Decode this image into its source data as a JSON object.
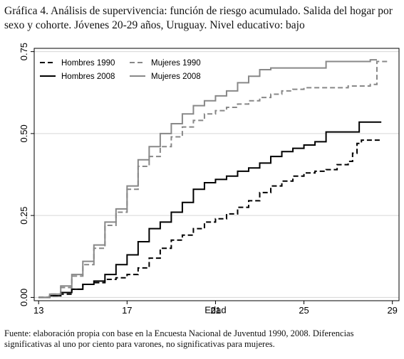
{
  "page": {
    "title": "Gráfica 4. Análisis de supervivencia: función de riesgo acumulado. Salida del hogar por sexo y cohorte. Jóvenes 20-29 años, Uruguay. Nivel educativo: bajo",
    "footnote": "Fuente: elaboración propia con base en la Encuesta Nacional de Juventud 1990, 2008. Diferencias significativas al uno por ciento para varones, no significativas para mujeres."
  },
  "chart_data": {
    "type": "line",
    "xlabel": "Edad",
    "ylabel": "",
    "xlim": [
      12.8,
      29.3
    ],
    "ylim": [
      -0.01,
      0.76
    ],
    "x_ticks": [
      13,
      17,
      21,
      25,
      29
    ],
    "y_ticks": [
      0.0,
      0.25,
      0.5,
      0.75
    ],
    "y_tick_labels": [
      "0.00",
      "0.25",
      "0.50",
      "0.75"
    ],
    "grid": "horizontal",
    "legend_position": "top-left",
    "series": [
      {
        "name": "Hombres 1990",
        "color": "#000000",
        "dash": "7,4",
        "width": 2,
        "x": [
          13.0,
          13.5,
          14.0,
          14.5,
          15.0,
          15.5,
          16.0,
          16.5,
          17.0,
          17.5,
          18.0,
          18.5,
          19.0,
          19.5,
          20.0,
          20.5,
          21.0,
          21.5,
          22.0,
          22.5,
          23.0,
          23.5,
          24.0,
          24.5,
          25.0,
          25.5,
          26.0,
          26.5,
          27.0,
          27.2,
          27.4,
          27.6,
          28.5
        ],
        "y": [
          0.0,
          0.005,
          0.01,
          0.025,
          0.04,
          0.045,
          0.055,
          0.06,
          0.07,
          0.09,
          0.12,
          0.15,
          0.175,
          0.19,
          0.21,
          0.23,
          0.24,
          0.255,
          0.275,
          0.295,
          0.32,
          0.34,
          0.355,
          0.37,
          0.38,
          0.385,
          0.39,
          0.405,
          0.415,
          0.44,
          0.47,
          0.48,
          0.48
        ]
      },
      {
        "name": "Mujeres 1990",
        "color": "#888888",
        "dash": "7,4",
        "width": 2,
        "x": [
          13.0,
          13.5,
          14.0,
          14.5,
          15.0,
          15.5,
          16.0,
          16.5,
          17.0,
          17.5,
          18.0,
          18.5,
          19.0,
          19.5,
          20.0,
          20.5,
          21.0,
          21.5,
          22.0,
          22.5,
          23.0,
          23.5,
          24.0,
          24.5,
          25.0,
          25.5,
          26.0,
          26.5,
          27.0,
          27.5,
          28.0,
          28.3,
          28.8
        ],
        "y": [
          0.0,
          0.01,
          0.03,
          0.065,
          0.1,
          0.15,
          0.22,
          0.26,
          0.33,
          0.4,
          0.43,
          0.46,
          0.49,
          0.52,
          0.54,
          0.56,
          0.57,
          0.58,
          0.59,
          0.6,
          0.61,
          0.62,
          0.63,
          0.635,
          0.64,
          0.64,
          0.64,
          0.64,
          0.645,
          0.645,
          0.65,
          0.72,
          0.72
        ]
      },
      {
        "name": "Hombres 2008",
        "color": "#000000",
        "dash": "",
        "width": 2,
        "x": [
          13.0,
          13.5,
          14.0,
          14.5,
          15.0,
          15.5,
          16.0,
          16.5,
          17.0,
          17.5,
          18.0,
          18.5,
          19.0,
          19.5,
          20.0,
          20.5,
          21.0,
          21.5,
          22.0,
          22.5,
          23.0,
          23.5,
          24.0,
          24.5,
          25.0,
          25.5,
          26.0,
          26.5,
          27.0,
          27.5,
          28.0,
          28.5
        ],
        "y": [
          0.0,
          0.005,
          0.015,
          0.025,
          0.04,
          0.05,
          0.07,
          0.1,
          0.13,
          0.17,
          0.21,
          0.23,
          0.26,
          0.29,
          0.33,
          0.35,
          0.36,
          0.37,
          0.385,
          0.395,
          0.41,
          0.43,
          0.445,
          0.455,
          0.465,
          0.475,
          0.505,
          0.505,
          0.505,
          0.535,
          0.535,
          0.535
        ]
      },
      {
        "name": "Mujeres 2008",
        "color": "#888888",
        "dash": "",
        "width": 2,
        "x": [
          13.0,
          13.5,
          14.0,
          14.5,
          15.0,
          15.5,
          16.0,
          16.5,
          17.0,
          17.5,
          18.0,
          18.5,
          19.0,
          19.5,
          20.0,
          20.5,
          21.0,
          21.5,
          22.0,
          22.5,
          23.0,
          23.5,
          24.0,
          24.5,
          25.0,
          25.5,
          26.0,
          26.5,
          27.0,
          27.5,
          28.0,
          28.3
        ],
        "y": [
          0.0,
          0.01,
          0.035,
          0.07,
          0.11,
          0.16,
          0.23,
          0.27,
          0.34,
          0.42,
          0.46,
          0.5,
          0.53,
          0.56,
          0.585,
          0.6,
          0.615,
          0.63,
          0.655,
          0.675,
          0.695,
          0.7,
          0.7,
          0.7,
          0.7,
          0.7,
          0.72,
          0.72,
          0.72,
          0.72,
          0.725,
          0.725
        ]
      }
    ]
  }
}
